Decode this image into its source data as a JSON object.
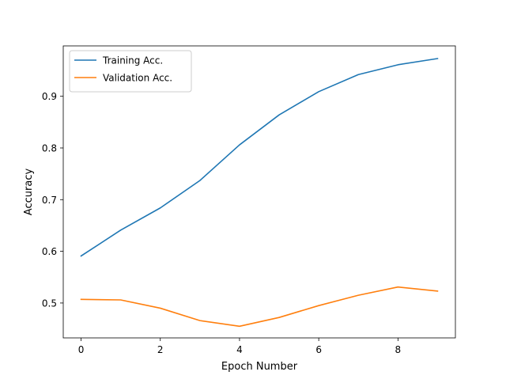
{
  "chart_data": {
    "type": "line",
    "xlabel": "Epoch Number",
    "ylabel": "Accuracy",
    "xlim": [
      -0.45,
      9.45
    ],
    "ylim": [
      0.4325,
      0.9975
    ],
    "xticks": [
      0,
      2,
      4,
      6,
      8
    ],
    "xtick_labels": [
      "0",
      "2",
      "4",
      "6",
      "8"
    ],
    "yticks": [
      0.5,
      0.6,
      0.7,
      0.8,
      0.9
    ],
    "ytick_labels": [
      "0.5",
      "0.6",
      "0.7",
      "0.8",
      "0.9"
    ],
    "grid": false,
    "legend": "top-left",
    "x": [
      0,
      1,
      2,
      3,
      4,
      5,
      6,
      7,
      8,
      9
    ],
    "series": [
      {
        "name": "Training Acc.",
        "color": "#1f77b4",
        "values": [
          0.591,
          0.641,
          0.684,
          0.737,
          0.806,
          0.864,
          0.909,
          0.942,
          0.961,
          0.973
        ]
      },
      {
        "name": "Validation Acc.",
        "color": "#ff7f0e",
        "values": [
          0.507,
          0.506,
          0.49,
          0.466,
          0.455,
          0.472,
          0.495,
          0.515,
          0.531,
          0.523
        ]
      }
    ]
  }
}
